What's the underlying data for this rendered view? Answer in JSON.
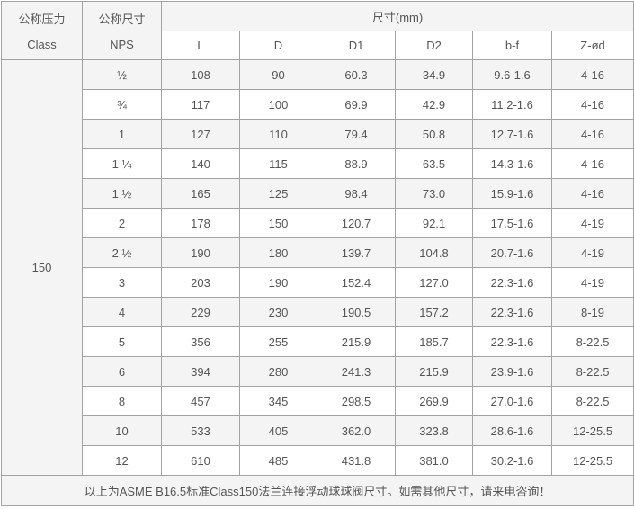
{
  "colors": {
    "border": "#a3a3a3",
    "zebra_row_bg": "#f4f4f4",
    "plain_row_bg": "#ffffff",
    "text": "#555555"
  },
  "table": {
    "header": {
      "pressure_label_cn": "公称压力",
      "pressure_label_en": "Class",
      "size_label_cn": "公称尺寸",
      "size_label_en": "NPS",
      "dims_group_label": "尺寸(mm)",
      "dim_columns": [
        "L",
        "D",
        "D1",
        "D2",
        "b-f",
        "Z-ød"
      ]
    },
    "class_value": "150",
    "rows": [
      {
        "nps": "½",
        "cells": [
          "108",
          "90",
          "60.3",
          "34.9",
          "9.6-1.6",
          "4-16"
        ]
      },
      {
        "nps": "¾",
        "cells": [
          "117",
          "100",
          "69.9",
          "42.9",
          "11.2-1.6",
          "4-16"
        ]
      },
      {
        "nps": "1",
        "cells": [
          "127",
          "110",
          "79.4",
          "50.8",
          "12.7-1.6",
          "4-16"
        ]
      },
      {
        "nps": "1 ¼",
        "cells": [
          "140",
          "115",
          "88.9",
          "63.5",
          "14.3-1.6",
          "4-16"
        ]
      },
      {
        "nps": "1 ½",
        "cells": [
          "165",
          "125",
          "98.4",
          "73.0",
          "15.9-1.6",
          "4-16"
        ]
      },
      {
        "nps": "2",
        "cells": [
          "178",
          "150",
          "120.7",
          "92.1",
          "17.5-1.6",
          "4-19"
        ]
      },
      {
        "nps": "2 ½",
        "cells": [
          "190",
          "180",
          "139.7",
          "104.8",
          "20.7-1.6",
          "4-19"
        ]
      },
      {
        "nps": "3",
        "cells": [
          "203",
          "190",
          "152.4",
          "127.0",
          "22.3-1.6",
          "4-19"
        ]
      },
      {
        "nps": "4",
        "cells": [
          "229",
          "230",
          "190.5",
          "157.2",
          "22.3-1.6",
          "8-19"
        ]
      },
      {
        "nps": "5",
        "cells": [
          "356",
          "255",
          "215.9",
          "185.7",
          "22.3-1.6",
          "8-22.5"
        ]
      },
      {
        "nps": "6",
        "cells": [
          "394",
          "280",
          "241.3",
          "215.9",
          "23.9-1.6",
          "8-22.5"
        ]
      },
      {
        "nps": "8",
        "cells": [
          "457",
          "345",
          "298.5",
          "269.9",
          "27.0-1.6",
          "8-22.5"
        ]
      },
      {
        "nps": "10",
        "cells": [
          "533",
          "405",
          "362.0",
          "323.8",
          "28.6-1.6",
          "12-25.5"
        ]
      },
      {
        "nps": "12",
        "cells": [
          "610",
          "485",
          "431.8",
          "381.0",
          "30.2-1.6",
          "12-25.5"
        ]
      }
    ],
    "footer_note": "以上为ASME B16.5标准Class150法兰连接浮动球球阀尺寸。如需其他尺寸，请来电咨询！"
  }
}
